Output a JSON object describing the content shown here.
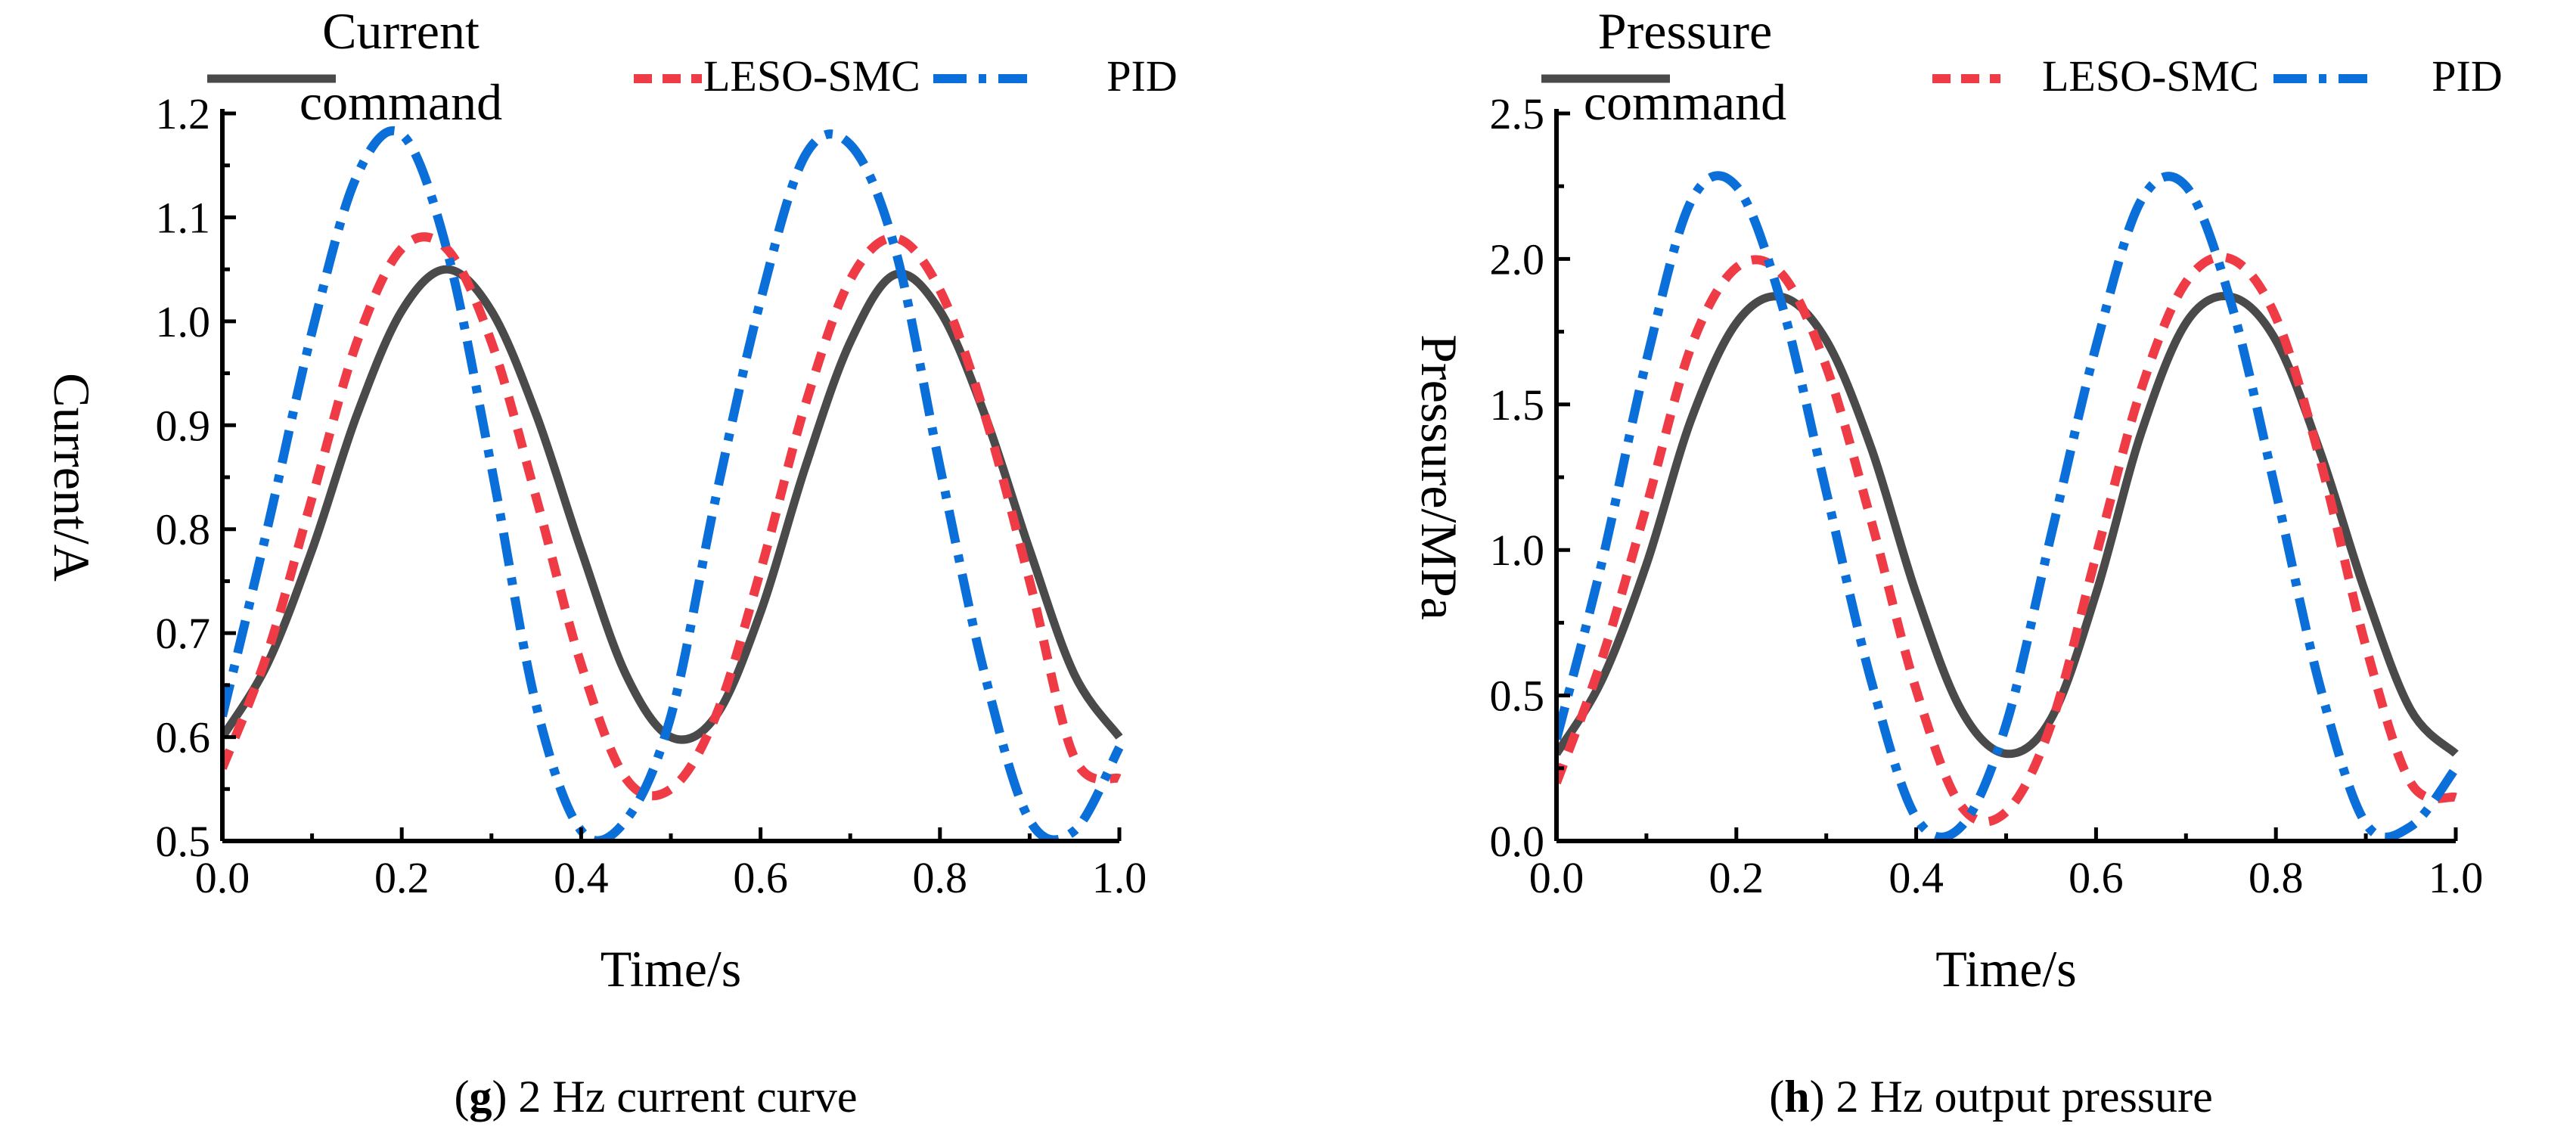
{
  "colors": {
    "command": "#4a4a4a",
    "leso_smc": "#ef3b45",
    "pid": "#0a6fd8",
    "axis": "#000000"
  },
  "chart_data": [
    {
      "id": "g",
      "type": "line",
      "title": "",
      "caption_letter": "g",
      "caption_text": "2 Hz current curve",
      "xlabel": "Time/s",
      "ylabel": "Current/A",
      "xlim": [
        0.0,
        1.0
      ],
      "ylim": [
        0.5,
        1.2
      ],
      "xticks": [
        0.0,
        0.2,
        0.4,
        0.6,
        0.8,
        1.0
      ],
      "xtick_labels": [
        "0.0",
        "0.2",
        "0.4",
        "0.6",
        "0.8",
        "1.0"
      ],
      "yticks": [
        0.5,
        0.6,
        0.7,
        0.8,
        0.9,
        1.0,
        1.1,
        1.2
      ],
      "ytick_labels": [
        "0.5",
        "0.6",
        "0.7",
        "0.8",
        "0.9",
        "1.0",
        "1.1",
        "1.2"
      ],
      "legend_position": "top",
      "series": [
        {
          "key": "command",
          "name_line1": "Current",
          "name_line2": "command",
          "style": "solid",
          "x": [
            0.0,
            0.05,
            0.1,
            0.15,
            0.2,
            0.25,
            0.3,
            0.35,
            0.4,
            0.45,
            0.5,
            0.55,
            0.6,
            0.65,
            0.7,
            0.75,
            0.8,
            0.85,
            0.9,
            0.95,
            1.0
          ],
          "y": [
            0.6,
            0.67,
            0.78,
            0.91,
            1.01,
            1.05,
            1.01,
            0.91,
            0.78,
            0.66,
            0.6,
            0.62,
            0.72,
            0.86,
            0.98,
            1.045,
            1.01,
            0.91,
            0.78,
            0.66,
            0.6
          ]
        },
        {
          "key": "leso_smc",
          "name_line1": "LESO-SMC",
          "style": "dashed",
          "x": [
            0.0,
            0.05,
            0.1,
            0.15,
            0.2,
            0.25,
            0.3,
            0.35,
            0.4,
            0.45,
            0.5,
            0.55,
            0.6,
            0.65,
            0.7,
            0.75,
            0.8,
            0.85,
            0.9,
            0.95,
            1.0
          ],
          "y": [
            0.57,
            0.68,
            0.83,
            0.98,
            1.07,
            1.07,
            0.98,
            0.83,
            0.67,
            0.56,
            0.55,
            0.62,
            0.76,
            0.92,
            1.04,
            1.08,
            1.03,
            0.91,
            0.75,
            0.58,
            0.56
          ]
        },
        {
          "key": "pid",
          "name_line1": "PID",
          "style": "dashdot",
          "x": [
            0.0,
            0.05,
            0.1,
            0.15,
            0.2,
            0.25,
            0.3,
            0.35,
            0.4,
            0.45,
            0.5,
            0.55,
            0.6,
            0.65,
            0.7,
            0.75,
            0.8,
            0.85,
            0.9,
            0.95,
            1.0
          ],
          "y": [
            0.62,
            0.8,
            0.99,
            1.14,
            1.18,
            1.07,
            0.86,
            0.63,
            0.51,
            0.52,
            0.62,
            0.83,
            1.02,
            1.16,
            1.17,
            1.07,
            0.86,
            0.66,
            0.52,
            0.51,
            0.59
          ]
        }
      ]
    },
    {
      "id": "h",
      "type": "line",
      "title": "",
      "caption_letter": "h",
      "caption_text": "2 Hz output pressure",
      "xlabel": "Time/s",
      "ylabel": "Pressure/MPa",
      "xlim": [
        0.0,
        1.0
      ],
      "ylim": [
        0.0,
        2.5
      ],
      "xticks": [
        0.0,
        0.2,
        0.4,
        0.6,
        0.8,
        1.0
      ],
      "xtick_labels": [
        "0.0",
        "0.2",
        "0.4",
        "0.6",
        "0.8",
        "1.0"
      ],
      "yticks": [
        0.0,
        0.5,
        1.0,
        1.5,
        2.0,
        2.5
      ],
      "ytick_labels": [
        "0.0",
        "0.5",
        "1.0",
        "1.5",
        "2.0",
        "2.5"
      ],
      "legend_position": "top",
      "series": [
        {
          "key": "command",
          "name_line1": "Pressure",
          "name_line2": "command",
          "style": "solid",
          "x": [
            0.0,
            0.05,
            0.1,
            0.15,
            0.2,
            0.25,
            0.3,
            0.35,
            0.4,
            0.45,
            0.5,
            0.55,
            0.6,
            0.65,
            0.7,
            0.75,
            0.8,
            0.85,
            0.9,
            0.95,
            1.0
          ],
          "y": [
            0.3,
            0.55,
            0.95,
            1.45,
            1.78,
            1.87,
            1.72,
            1.35,
            0.85,
            0.45,
            0.3,
            0.42,
            0.85,
            1.4,
            1.78,
            1.87,
            1.72,
            1.33,
            0.85,
            0.45,
            0.3
          ]
        },
        {
          "key": "leso_smc",
          "name_line1": "LESO-SMC",
          "style": "dashed",
          "x": [
            0.0,
            0.05,
            0.1,
            0.15,
            0.2,
            0.25,
            0.3,
            0.35,
            0.4,
            0.45,
            0.5,
            0.55,
            0.6,
            0.65,
            0.7,
            0.75,
            0.8,
            0.85,
            0.9,
            0.95,
            1.0
          ],
          "y": [
            0.2,
            0.62,
            1.15,
            1.7,
            1.97,
            1.95,
            1.63,
            1.1,
            0.52,
            0.12,
            0.1,
            0.4,
            0.98,
            1.55,
            1.92,
            2.0,
            1.8,
            1.3,
            0.67,
            0.2,
            0.15
          ]
        },
        {
          "key": "pid",
          "name_line1": "PID",
          "style": "dashdot",
          "x": [
            0.0,
            0.05,
            0.1,
            0.15,
            0.2,
            0.25,
            0.3,
            0.35,
            0.4,
            0.45,
            0.5,
            0.55,
            0.6,
            0.65,
            0.7,
            0.75,
            0.8,
            0.85,
            0.9,
            0.95,
            1.0
          ],
          "y": [
            0.35,
            0.95,
            1.65,
            2.2,
            2.25,
            1.85,
            1.2,
            0.55,
            0.08,
            0.05,
            0.4,
            1.05,
            1.7,
            2.2,
            2.25,
            1.85,
            1.2,
            0.52,
            0.06,
            0.05,
            0.25
          ]
        }
      ]
    }
  ]
}
